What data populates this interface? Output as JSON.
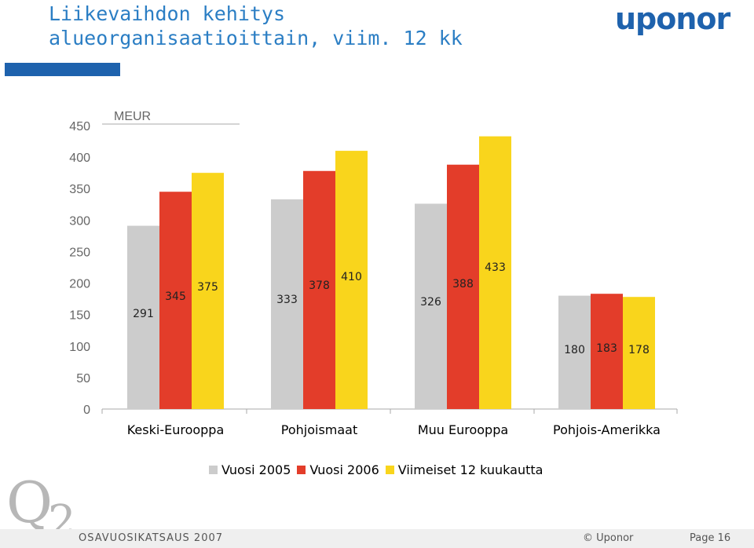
{
  "title": {
    "line1": "Liikevaihdon kehitys",
    "line2": "alueorganisaatioittain, viim. 12 kk"
  },
  "logo": {
    "text": "uponor"
  },
  "chart_data": {
    "type": "bar",
    "unit_label": "MEUR",
    "categories": [
      "Keski-Eurooppa",
      "Pohjoismaat",
      "Muu Eurooppa",
      "Pohjois-Amerikka"
    ],
    "series": [
      {
        "name": "Vuosi 2005",
        "color": "#cccccc",
        "values": [
          291,
          333,
          326,
          180
        ]
      },
      {
        "name": "Vuosi 2006",
        "color": "#e33d2a",
        "values": [
          345,
          378,
          388,
          183
        ]
      },
      {
        "name": "Viimeiset 12 kuukautta",
        "color": "#f9d51c",
        "values": [
          375,
          410,
          433,
          178
        ]
      }
    ],
    "ylim": [
      0,
      450
    ],
    "yticks": [
      0,
      50,
      100,
      150,
      200,
      250,
      300,
      350,
      400,
      450
    ],
    "grid": false,
    "legend_position": "bottom"
  },
  "footer": {
    "deck": "OSAVUOSIKATSAUS 2007",
    "copyright": "© Uponor",
    "page": "Page 16",
    "brand_mark": "Q2"
  }
}
